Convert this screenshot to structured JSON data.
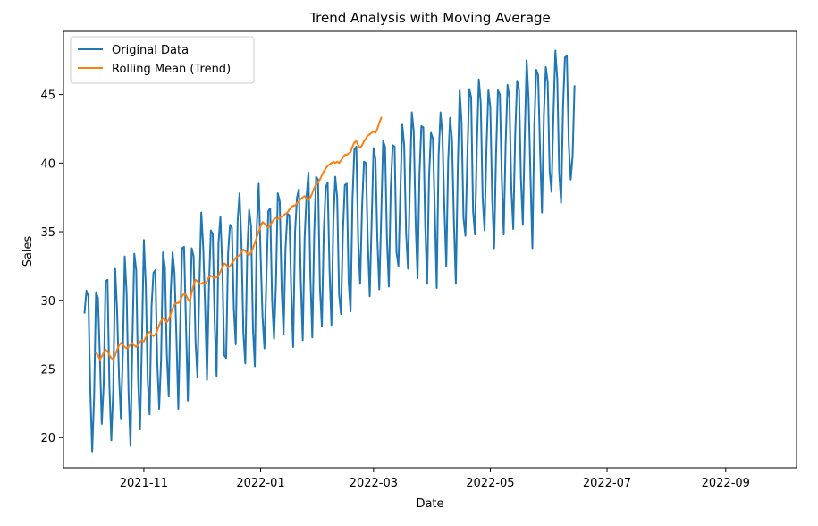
{
  "chart_data": {
    "type": "line",
    "title": "Trend Analysis with Moving Average",
    "xlabel": "Date",
    "ylabel": "Sales",
    "xlim": [
      "2021-09-20",
      "2022-10-08"
    ],
    "ylim": [
      17.8,
      49.6
    ],
    "grid": false,
    "legend_position": "upper left",
    "x_tick_labels": [
      "2021-11",
      "2022-01",
      "2022-03",
      "2022-05",
      "2022-07",
      "2022-09"
    ],
    "x_tick_dates": [
      "2021-11-01",
      "2022-01-01",
      "2022-03-01",
      "2022-05-01",
      "2022-07-01",
      "2022-09-01"
    ],
    "y_ticks": [
      20,
      25,
      30,
      35,
      40,
      45
    ],
    "series": [
      {
        "name": "Original Data",
        "color": "#1f77b4",
        "start_date": "2021-10-01",
        "values": [
          29.1,
          30.7,
          30.3,
          23.5,
          19.0,
          23.0,
          30.6,
          30.2,
          26.0,
          21.0,
          23.8,
          31.4,
          31.5,
          23.8,
          19.8,
          23.5,
          32.3,
          29.3,
          24.5,
          21.4,
          26.0,
          33.2,
          30.5,
          23.3,
          19.4,
          27.0,
          33.4,
          32.2,
          24.2,
          20.6,
          27.1,
          34.4,
          31.1,
          24.2,
          21.7,
          29.5,
          32.0,
          32.2,
          25.5,
          22.1,
          25.7,
          33.5,
          32.4,
          26.1,
          23.0,
          30.5,
          33.5,
          32.0,
          27.4,
          22.1,
          28.3,
          33.8,
          33.9,
          28.3,
          22.7,
          28.8,
          33.8,
          33.2,
          27.0,
          24.4,
          31.1,
          36.4,
          33.9,
          29.6,
          24.2,
          31.0,
          35.1,
          34.8,
          28.4,
          24.5,
          34.2,
          36.1,
          32.4,
          26.0,
          25.8,
          33.4,
          35.5,
          35.3,
          29.4,
          26.8,
          35.8,
          37.8,
          34.1,
          27.6,
          25.4,
          33.5,
          36.6,
          35.4,
          27.9,
          25.2,
          35.3,
          38.5,
          33.3,
          28.8,
          26.5,
          31.5,
          36.5,
          36.7,
          30.0,
          27.2,
          31.1,
          37.8,
          37.2,
          30.8,
          27.5,
          33.8,
          36.3,
          36.2,
          30.8,
          26.6,
          35.0,
          37.5,
          38.1,
          31.4,
          27.1,
          34.6,
          37.6,
          39.3,
          31.7,
          27.3,
          34.9,
          39.0,
          38.8,
          30.9,
          28.1,
          35.0,
          38.2,
          38.6,
          32.2,
          28.2,
          35.7,
          39.0,
          37.5,
          30.4,
          29.0,
          35.0,
          38.4,
          38.5,
          31.3,
          29.2,
          37.4,
          41.0,
          41.2,
          34.3,
          31.2,
          36.8,
          40.1,
          40.0,
          34.3,
          30.3,
          35.7,
          41.1,
          40.3,
          34.4,
          30.8,
          36.1,
          41.6,
          41.2,
          34.5,
          31.0,
          38.2,
          41.3,
          41.2,
          33.5,
          32.5,
          37.8,
          42.8,
          41.3,
          34.9,
          32.3,
          38.4,
          43.7,
          42.3,
          35.6,
          31.6,
          39.2,
          42.7,
          42.6,
          35.4,
          31.2,
          39.0,
          42.2,
          41.8,
          36.5,
          30.9,
          40.6,
          43.7,
          42.0,
          36.7,
          32.5,
          40.2,
          43.3,
          41.7,
          35.7,
          31.2,
          39.5,
          45.3,
          42.9,
          36.0,
          34.7,
          40.4,
          45.4,
          44.8,
          36.5,
          34.8,
          41.3,
          46.1,
          44.4,
          37.5,
          35.1,
          41.1,
          45.3,
          44.1,
          37.4,
          33.8,
          40.6,
          45.3,
          45.0,
          38.9,
          34.8,
          41.3,
          45.7,
          44.8,
          38.1,
          35.2,
          42.0,
          46.0,
          45.4,
          38.9,
          35.5,
          41.9,
          47.5,
          44.7,
          39.0,
          33.8,
          42.7,
          46.8,
          46.4,
          40.9,
          36.4,
          43.5,
          47.0,
          45.9,
          39.4,
          37.9,
          43.6,
          48.2,
          46.1,
          39.3,
          37.1,
          44.1,
          47.7,
          47.8,
          41.4,
          38.8,
          40.5,
          45.6
        ]
      },
      {
        "name": "Rolling Mean (Trend)",
        "color": "#ff7f0e",
        "start_date": "2021-10-07",
        "values": [
          26.2,
          26.0,
          25.7,
          25.9,
          26.2,
          26.4,
          26.3,
          26.0,
          25.8,
          25.7,
          26.0,
          26.4,
          26.7,
          26.9,
          26.8,
          26.6,
          26.5,
          26.6,
          26.8,
          26.9,
          26.7,
          26.6,
          26.8,
          27.0,
          27.1,
          27.0,
          27.3,
          27.6,
          27.7,
          27.5,
          27.4,
          27.5,
          27.8,
          28.2,
          28.5,
          28.7,
          28.6,
          28.4,
          28.6,
          29.0,
          29.4,
          29.7,
          29.8,
          29.8,
          30.0,
          30.3,
          30.5,
          30.4,
          30.1,
          29.9,
          30.6,
          31.1,
          31.5,
          31.4,
          31.2,
          31.2,
          31.3,
          31.2,
          31.4,
          31.7,
          31.8,
          31.7,
          31.6,
          31.7,
          31.8,
          32.1,
          32.4,
          32.7,
          32.6,
          32.4,
          32.5,
          32.7,
          32.9,
          33.1,
          33.2,
          33.3,
          33.5,
          33.7,
          33.6,
          33.4,
          33.3,
          33.5,
          33.8,
          34.2,
          34.6,
          35.0,
          35.4,
          35.7,
          35.6,
          35.4,
          35.3,
          35.5,
          35.7,
          35.9,
          36.0,
          35.9,
          36.0,
          36.1,
          36.2,
          36.3,
          36.4,
          36.6,
          36.8,
          36.9,
          36.9,
          37.1,
          37.2,
          37.4,
          37.5,
          37.6,
          37.4,
          37.3,
          37.5,
          37.8,
          38.2,
          38.4,
          38.6,
          38.8,
          39.1,
          39.4,
          39.6,
          39.8,
          39.9,
          40.0,
          40.1,
          40.0,
          40.1,
          40.0,
          40.2,
          40.4,
          40.6,
          40.6,
          40.7,
          40.8,
          41.2,
          41.5,
          41.6,
          41.3,
          41.1,
          41.3,
          41.6,
          41.8,
          42.0,
          42.1,
          42.2,
          42.3,
          42.2,
          42.5,
          42.9,
          43.3
        ]
      }
    ]
  }
}
